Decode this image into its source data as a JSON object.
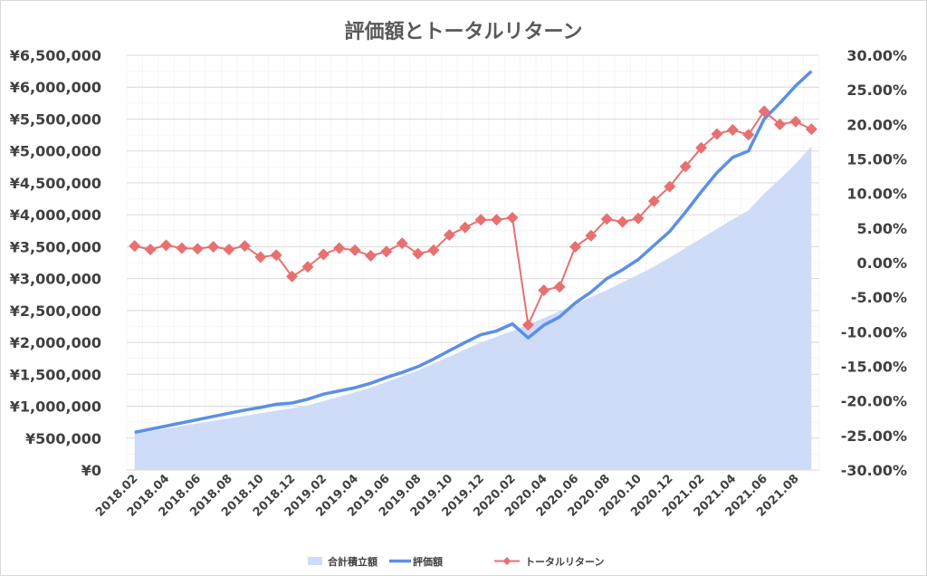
{
  "chart_data": {
    "type": "line",
    "title": "評価額とトータルリターン",
    "categories": [
      "2018.02",
      "2018.03",
      "2018.04",
      "2018.05",
      "2018.06",
      "2018.07",
      "2018.08",
      "2018.09",
      "2018.10",
      "2018.11",
      "2018.12",
      "2019.01",
      "2019.02",
      "2019.03",
      "2019.04",
      "2019.05",
      "2019.06",
      "2019.07",
      "2019.08",
      "2019.09",
      "2019.10",
      "2019.11",
      "2019.12",
      "2020.01",
      "2020.02",
      "2020.03",
      "2020.04",
      "2020.05",
      "2020.06",
      "2020.07",
      "2020.08",
      "2020.09",
      "2020.10",
      "2020.11",
      "2020.12",
      "2021.01",
      "2021.02",
      "2021.03",
      "2021.04",
      "2021.05",
      "2021.06",
      "2021.07",
      "2021.08",
      "2021.09"
    ],
    "x_tick_labels": [
      "2018.02",
      "2018.04",
      "2018.06",
      "2018.08",
      "2018.10",
      "2018.12",
      "2019.02",
      "2019.04",
      "2019.06",
      "2019.08",
      "2019.10",
      "2019.12",
      "2020.02",
      "2020.04",
      "2020.06",
      "2020.08",
      "2020.10",
      "2020.12",
      "2021.02",
      "2021.04",
      "2021.06",
      "2021.08"
    ],
    "y_left": {
      "ylim": [
        0,
        6500000
      ],
      "tick_step": 500000,
      "tick_labels": [
        "¥0",
        "¥500,000",
        "¥1,000,000",
        "¥1,500,000",
        "¥2,000,000",
        "¥2,500,000",
        "¥3,000,000",
        "¥3,500,000",
        "¥4,000,000",
        "¥4,500,000",
        "¥5,000,000",
        "¥5,500,000",
        "¥6,000,000",
        "¥6,500,000"
      ]
    },
    "y_right": {
      "ylim": [
        -30,
        30
      ],
      "tick_step": 5,
      "tick_labels": [
        "-30.00%",
        "-25.00%",
        "-20.00%",
        "-15.00%",
        "-10.00%",
        "-5.00%",
        "0.00%",
        "5.00%",
        "10.00%",
        "15.00%",
        "20.00%",
        "25.00%",
        "30.00%"
      ]
    },
    "series": [
      {
        "name": "合計積立額",
        "kind": "area",
        "axis": "left",
        "color": "#cfdcf7",
        "values": [
          570000,
          610000,
          650000,
          690000,
          730000,
          770000,
          810000,
          850000,
          890000,
          930000,
          970000,
          1010000,
          1080000,
          1150000,
          1220000,
          1290000,
          1380000,
          1470000,
          1560000,
          1670000,
          1780000,
          1890000,
          2000000,
          2090000,
          2180000,
          2280000,
          2380000,
          2490000,
          2600000,
          2710000,
          2820000,
          2940000,
          3060000,
          3190000,
          3330000,
          3480000,
          3630000,
          3780000,
          3930000,
          4070000,
          4330000,
          4560000,
          4800000,
          5070000
        ]
      },
      {
        "name": "評価額",
        "kind": "line",
        "axis": "left",
        "color": "#5b8fe8",
        "values": [
          590000,
          640000,
          690000,
          740000,
          790000,
          840000,
          890000,
          940000,
          980000,
          1030000,
          1050000,
          1110000,
          1190000,
          1240000,
          1290000,
          1360000,
          1450000,
          1530000,
          1620000,
          1740000,
          1870000,
          2000000,
          2120000,
          2180000,
          2290000,
          2070000,
          2270000,
          2400000,
          2620000,
          2790000,
          3000000,
          3140000,
          3300000,
          3520000,
          3740000,
          4040000,
          4360000,
          4660000,
          4900000,
          5000000,
          5500000,
          5750000,
          6020000,
          6250000
        ]
      },
      {
        "name": "トータルリターン",
        "kind": "line-marker",
        "axis": "right",
        "color": "#e87070",
        "values": [
          2.4,
          1.9,
          2.5,
          2.1,
          2.0,
          2.3,
          1.9,
          2.4,
          0.8,
          1.1,
          -2.0,
          -0.6,
          1.2,
          2.1,
          1.8,
          1.0,
          1.6,
          2.8,
          1.3,
          1.8,
          4.0,
          5.1,
          6.2,
          6.2,
          6.5,
          -9.0,
          -4.0,
          -3.5,
          2.3,
          3.9,
          6.3,
          5.9,
          6.4,
          8.9,
          11.0,
          13.9,
          16.6,
          18.6,
          19.2,
          18.5,
          21.9,
          20.0,
          20.4,
          19.3
        ]
      }
    ],
    "legend": {
      "placement": "bottom"
    },
    "grid": true
  }
}
